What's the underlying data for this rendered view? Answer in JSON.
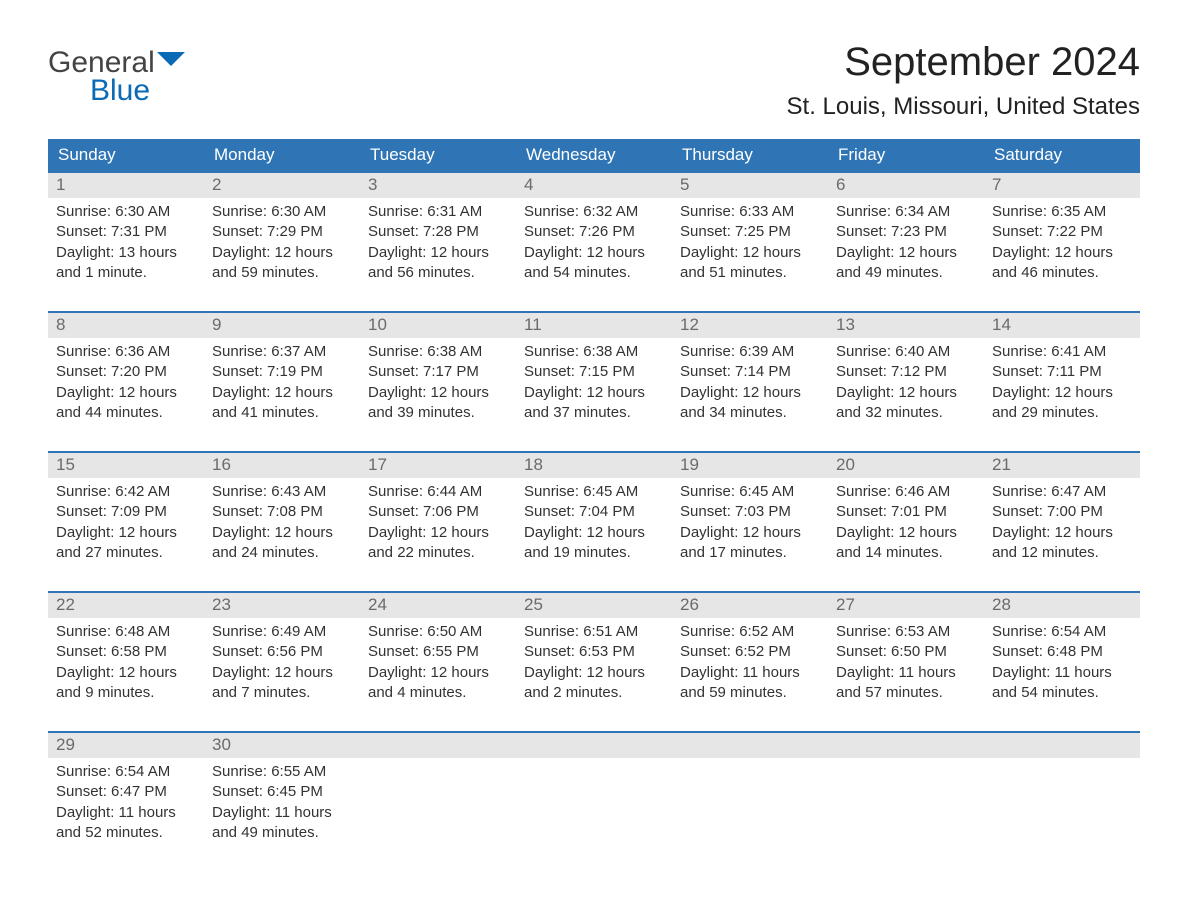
{
  "brand": {
    "line1": "General",
    "line2": "Blue",
    "color1": "#444444",
    "color2": "#0a6ab6"
  },
  "title": "September 2024",
  "location": "St. Louis, Missouri, United States",
  "colors": {
    "header_bg": "#2f75b5",
    "header_text": "#ffffff",
    "week_border": "#2f75b5",
    "daynum_bg": "#e6e6e6",
    "daynum_text": "#6b6b6b",
    "body_text": "#333333",
    "background": "#ffffff"
  },
  "typography": {
    "title_fontsize": 40,
    "location_fontsize": 24,
    "dow_fontsize": 17,
    "daynum_fontsize": 17,
    "body_fontsize": 15
  },
  "day_labels": [
    "Sunday",
    "Monday",
    "Tuesday",
    "Wednesday",
    "Thursday",
    "Friday",
    "Saturday"
  ],
  "weeks": [
    [
      {
        "n": "1",
        "sr": "Sunrise: 6:30 AM",
        "ss": "Sunset: 7:31 PM",
        "d1": "Daylight: 13 hours",
        "d2": "and 1 minute."
      },
      {
        "n": "2",
        "sr": "Sunrise: 6:30 AM",
        "ss": "Sunset: 7:29 PM",
        "d1": "Daylight: 12 hours",
        "d2": "and 59 minutes."
      },
      {
        "n": "3",
        "sr": "Sunrise: 6:31 AM",
        "ss": "Sunset: 7:28 PM",
        "d1": "Daylight: 12 hours",
        "d2": "and 56 minutes."
      },
      {
        "n": "4",
        "sr": "Sunrise: 6:32 AM",
        "ss": "Sunset: 7:26 PM",
        "d1": "Daylight: 12 hours",
        "d2": "and 54 minutes."
      },
      {
        "n": "5",
        "sr": "Sunrise: 6:33 AM",
        "ss": "Sunset: 7:25 PM",
        "d1": "Daylight: 12 hours",
        "d2": "and 51 minutes."
      },
      {
        "n": "6",
        "sr": "Sunrise: 6:34 AM",
        "ss": "Sunset: 7:23 PM",
        "d1": "Daylight: 12 hours",
        "d2": "and 49 minutes."
      },
      {
        "n": "7",
        "sr": "Sunrise: 6:35 AM",
        "ss": "Sunset: 7:22 PM",
        "d1": "Daylight: 12 hours",
        "d2": "and 46 minutes."
      }
    ],
    [
      {
        "n": "8",
        "sr": "Sunrise: 6:36 AM",
        "ss": "Sunset: 7:20 PM",
        "d1": "Daylight: 12 hours",
        "d2": "and 44 minutes."
      },
      {
        "n": "9",
        "sr": "Sunrise: 6:37 AM",
        "ss": "Sunset: 7:19 PM",
        "d1": "Daylight: 12 hours",
        "d2": "and 41 minutes."
      },
      {
        "n": "10",
        "sr": "Sunrise: 6:38 AM",
        "ss": "Sunset: 7:17 PM",
        "d1": "Daylight: 12 hours",
        "d2": "and 39 minutes."
      },
      {
        "n": "11",
        "sr": "Sunrise: 6:38 AM",
        "ss": "Sunset: 7:15 PM",
        "d1": "Daylight: 12 hours",
        "d2": "and 37 minutes."
      },
      {
        "n": "12",
        "sr": "Sunrise: 6:39 AM",
        "ss": "Sunset: 7:14 PM",
        "d1": "Daylight: 12 hours",
        "d2": "and 34 minutes."
      },
      {
        "n": "13",
        "sr": "Sunrise: 6:40 AM",
        "ss": "Sunset: 7:12 PM",
        "d1": "Daylight: 12 hours",
        "d2": "and 32 minutes."
      },
      {
        "n": "14",
        "sr": "Sunrise: 6:41 AM",
        "ss": "Sunset: 7:11 PM",
        "d1": "Daylight: 12 hours",
        "d2": "and 29 minutes."
      }
    ],
    [
      {
        "n": "15",
        "sr": "Sunrise: 6:42 AM",
        "ss": "Sunset: 7:09 PM",
        "d1": "Daylight: 12 hours",
        "d2": "and 27 minutes."
      },
      {
        "n": "16",
        "sr": "Sunrise: 6:43 AM",
        "ss": "Sunset: 7:08 PM",
        "d1": "Daylight: 12 hours",
        "d2": "and 24 minutes."
      },
      {
        "n": "17",
        "sr": "Sunrise: 6:44 AM",
        "ss": "Sunset: 7:06 PM",
        "d1": "Daylight: 12 hours",
        "d2": "and 22 minutes."
      },
      {
        "n": "18",
        "sr": "Sunrise: 6:45 AM",
        "ss": "Sunset: 7:04 PM",
        "d1": "Daylight: 12 hours",
        "d2": "and 19 minutes."
      },
      {
        "n": "19",
        "sr": "Sunrise: 6:45 AM",
        "ss": "Sunset: 7:03 PM",
        "d1": "Daylight: 12 hours",
        "d2": "and 17 minutes."
      },
      {
        "n": "20",
        "sr": "Sunrise: 6:46 AM",
        "ss": "Sunset: 7:01 PM",
        "d1": "Daylight: 12 hours",
        "d2": "and 14 minutes."
      },
      {
        "n": "21",
        "sr": "Sunrise: 6:47 AM",
        "ss": "Sunset: 7:00 PM",
        "d1": "Daylight: 12 hours",
        "d2": "and 12 minutes."
      }
    ],
    [
      {
        "n": "22",
        "sr": "Sunrise: 6:48 AM",
        "ss": "Sunset: 6:58 PM",
        "d1": "Daylight: 12 hours",
        "d2": "and 9 minutes."
      },
      {
        "n": "23",
        "sr": "Sunrise: 6:49 AM",
        "ss": "Sunset: 6:56 PM",
        "d1": "Daylight: 12 hours",
        "d2": "and 7 minutes."
      },
      {
        "n": "24",
        "sr": "Sunrise: 6:50 AM",
        "ss": "Sunset: 6:55 PM",
        "d1": "Daylight: 12 hours",
        "d2": "and 4 minutes."
      },
      {
        "n": "25",
        "sr": "Sunrise: 6:51 AM",
        "ss": "Sunset: 6:53 PM",
        "d1": "Daylight: 12 hours",
        "d2": "and 2 minutes."
      },
      {
        "n": "26",
        "sr": "Sunrise: 6:52 AM",
        "ss": "Sunset: 6:52 PM",
        "d1": "Daylight: 11 hours",
        "d2": "and 59 minutes."
      },
      {
        "n": "27",
        "sr": "Sunrise: 6:53 AM",
        "ss": "Sunset: 6:50 PM",
        "d1": "Daylight: 11 hours",
        "d2": "and 57 minutes."
      },
      {
        "n": "28",
        "sr": "Sunrise: 6:54 AM",
        "ss": "Sunset: 6:48 PM",
        "d1": "Daylight: 11 hours",
        "d2": "and 54 minutes."
      }
    ],
    [
      {
        "n": "29",
        "sr": "Sunrise: 6:54 AM",
        "ss": "Sunset: 6:47 PM",
        "d1": "Daylight: 11 hours",
        "d2": "and 52 minutes."
      },
      {
        "n": "30",
        "sr": "Sunrise: 6:55 AM",
        "ss": "Sunset: 6:45 PM",
        "d1": "Daylight: 11 hours",
        "d2": "and 49 minutes."
      },
      {
        "empty": true
      },
      {
        "empty": true
      },
      {
        "empty": true
      },
      {
        "empty": true
      },
      {
        "empty": true
      }
    ]
  ]
}
